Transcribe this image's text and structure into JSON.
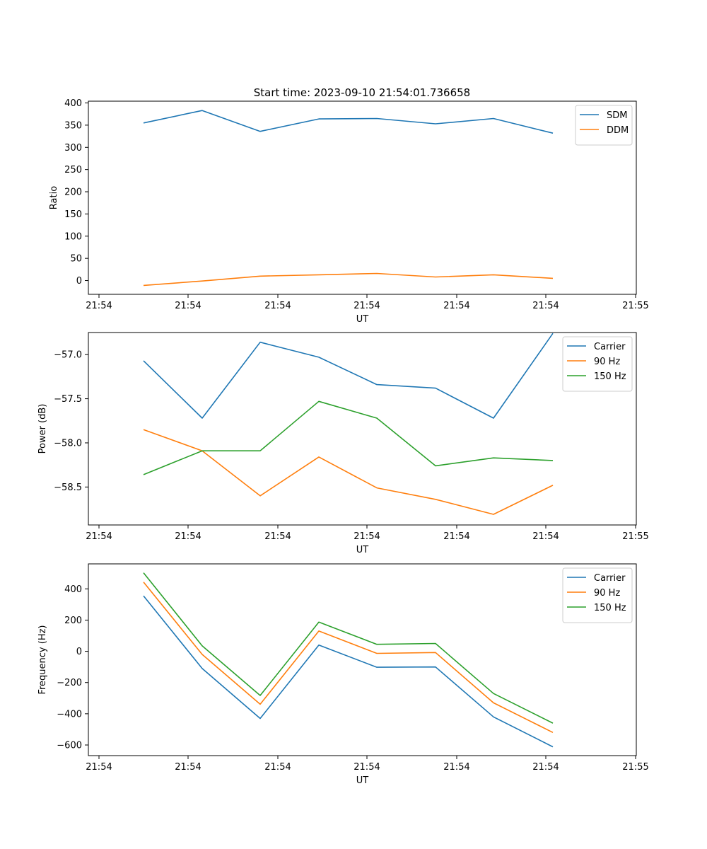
{
  "title": "Start time: 2023-09-10 21:54:01.736658",
  "chart_data": [
    {
      "type": "line",
      "x_tick_labels": [
        "21:54",
        "21:54",
        "21:54",
        "21:54",
        "21:54",
        "21:54",
        "21:55"
      ],
      "xlabel": "UT",
      "ylabel": "Ratio",
      "ylim": [
        -31,
        404
      ],
      "yticks": [
        0,
        50,
        100,
        150,
        200,
        250,
        300,
        350,
        400
      ],
      "y_tick_labels": [
        "0",
        "50",
        "100",
        "150",
        "200",
        "250",
        "300",
        "350",
        "400"
      ],
      "legend": "top-right",
      "series": [
        {
          "name": "SDM",
          "color": "#1f77b4",
          "values": [
            355,
            383,
            336,
            364,
            365,
            353,
            365,
            332
          ]
        },
        {
          "name": "DDM",
          "color": "#ff7f0e",
          "values": [
            -11,
            -1,
            10,
            13,
            16,
            8,
            13,
            5
          ]
        }
      ]
    },
    {
      "type": "line",
      "x_tick_labels": [
        "21:54",
        "21:54",
        "21:54",
        "21:54",
        "21:54",
        "21:54",
        "21:55"
      ],
      "xlabel": "UT",
      "ylabel": "Power (dB)",
      "ylim": [
        -58.93,
        -56.75
      ],
      "yticks": [
        -58.5,
        -58.0,
        -57.5,
        -57.0
      ],
      "y_tick_labels": [
        "−58.5",
        "−58.0",
        "−57.5",
        "−57.0"
      ],
      "legend": "top-right",
      "series": [
        {
          "name": "Carrier",
          "color": "#1f77b4",
          "values": [
            -57.07,
            -57.72,
            -56.86,
            -57.03,
            -57.34,
            -57.38,
            -57.72,
            -56.76
          ]
        },
        {
          "name": "90 Hz",
          "color": "#ff7f0e",
          "values": [
            -57.85,
            -58.09,
            -58.6,
            -58.16,
            -58.51,
            -58.64,
            -58.81,
            -58.48
          ]
        },
        {
          "name": "150 Hz",
          "color": "#2ca02c",
          "values": [
            -58.36,
            -58.09,
            -58.09,
            -57.53,
            -57.72,
            -58.26,
            -58.17,
            -58.2
          ]
        }
      ]
    },
    {
      "type": "line",
      "x_tick_labels": [
        "21:54",
        "21:54",
        "21:54",
        "21:54",
        "21:54",
        "21:54",
        "21:55"
      ],
      "xlabel": "UT",
      "ylabel": "Frequency (Hz)",
      "ylim": [
        -668,
        560
      ],
      "yticks": [
        -600,
        -400,
        -200,
        0,
        200,
        400
      ],
      "y_tick_labels": [
        "−600",
        "−400",
        "−200",
        "0",
        "200",
        "400"
      ],
      "legend": "top-right",
      "series": [
        {
          "name": "Carrier",
          "color": "#1f77b4",
          "values": [
            355,
            -110,
            -430,
            40,
            -102,
            -100,
            -420,
            -612
          ]
        },
        {
          "name": "90 Hz",
          "color": "#ff7f0e",
          "values": [
            443,
            -20,
            -339,
            130,
            -13,
            -8,
            -330,
            -520
          ]
        },
        {
          "name": "150 Hz",
          "color": "#2ca02c",
          "values": [
            503,
            35,
            -283,
            187,
            45,
            50,
            -270,
            -460
          ]
        }
      ]
    }
  ]
}
